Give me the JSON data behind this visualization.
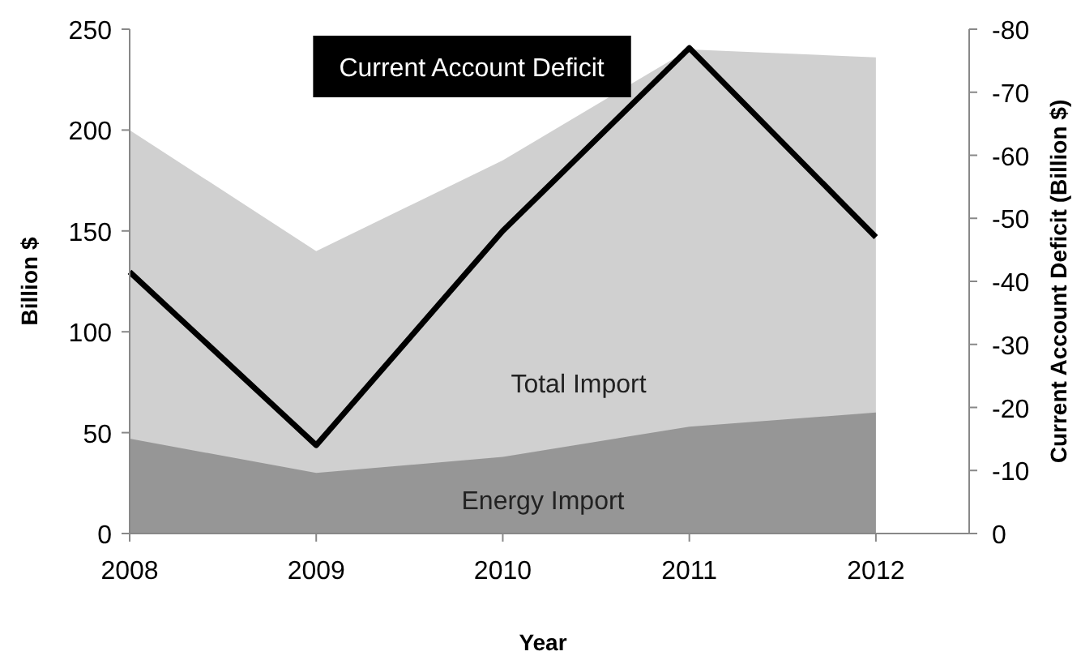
{
  "chart_data": {
    "type": "area",
    "xlabel": "Year",
    "ylabel": "Billion $",
    "y2label": "Current Account Deficit (Billion $)",
    "x": [
      2008,
      2009,
      2010,
      2011,
      2012
    ],
    "xlim": [
      2008,
      2012.5
    ],
    "xticks": [
      2008,
      2009,
      2010,
      2011,
      2012
    ],
    "ylim": [
      0,
      250
    ],
    "yticks": [
      0,
      50,
      100,
      150,
      200,
      250
    ],
    "y2lim": [
      0,
      -80
    ],
    "y2ticks": [
      0,
      -10,
      -20,
      -30,
      -40,
      -50,
      -60,
      -70,
      -80
    ],
    "series": [
      {
        "name": "Total Import",
        "color": "#d0d0d0",
        "values": [
          200,
          140,
          185,
          240,
          236
        ]
      },
      {
        "name": "Energy Import",
        "color": "#969696",
        "values": [
          47,
          30,
          38,
          53,
          60
        ]
      },
      {
        "name": "Current Account Deficit",
        "type": "line",
        "axis": "y2",
        "color": "#000000",
        "values": [
          -41.5,
          -14,
          -48,
          -77,
          -47
        ]
      }
    ],
    "grid": false,
    "legend": false,
    "line_style": "solid",
    "marker": "none"
  }
}
